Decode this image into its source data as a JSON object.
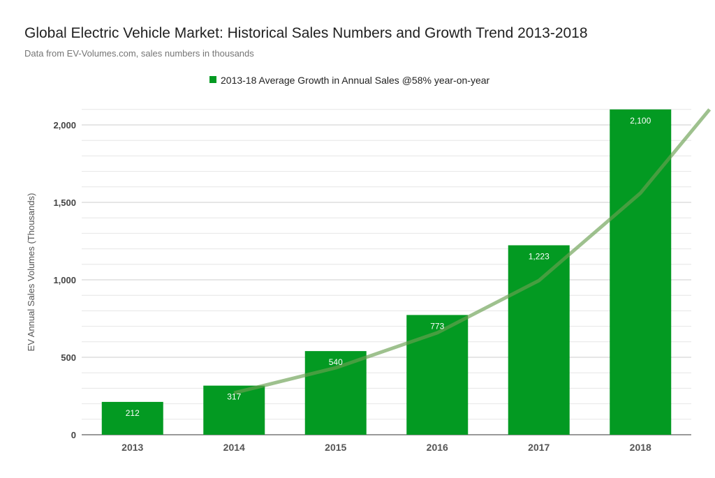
{
  "chart_data": {
    "type": "bar",
    "title": "Global Electric Vehicle Market: Historical Sales Numbers and Growth Trend 2013-2018",
    "subtitle": "Data from EV-Volumes.com, sales numbers in thousands",
    "xlabel": "",
    "ylabel": "EV Annual Sales Volumes (Thousands)",
    "categories": [
      "2013",
      "2014",
      "2015",
      "2016",
      "2017",
      "2018"
    ],
    "values": [
      212,
      317,
      540,
      773,
      1223,
      2100
    ],
    "data_labels": [
      "212",
      "317",
      "540",
      "773",
      "1,223",
      "2,100"
    ],
    "ylim": [
      0,
      2100
    ],
    "yticks": [
      0,
      500,
      1000,
      1500,
      2000
    ],
    "ytick_labels": [
      "0",
      "500",
      "1,000",
      "1,500",
      "2,000"
    ],
    "minor_grid_step": 100,
    "grid": true,
    "legend": {
      "position": "top",
      "entries": [
        "2013-18 Average Growth in Annual Sales @58% year-on-year"
      ]
    },
    "trendline": {
      "type": "exponential",
      "points": [
        [
          2014,
          270
        ],
        [
          2015,
          432
        ],
        [
          2016,
          658
        ],
        [
          2017,
          995
        ],
        [
          2018,
          1560
        ],
        [
          2018.68,
          2100
        ]
      ]
    },
    "colors": {
      "bar": "#039a22",
      "trend": "#6aa052",
      "legend_marker": "#039a22"
    }
  }
}
